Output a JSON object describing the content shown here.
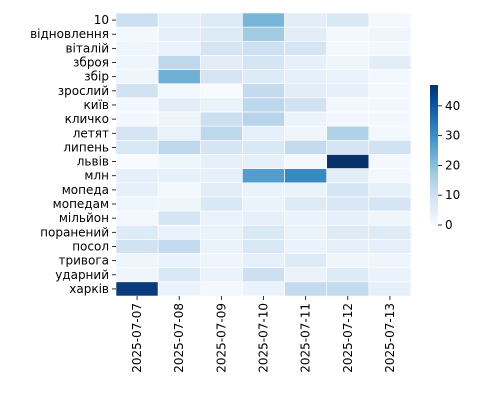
{
  "chart_data": {
    "type": "heatmap",
    "title": "",
    "xlabel": "",
    "ylabel": "",
    "x": [
      "2025-07-07",
      "2025-07-08",
      "2025-07-09",
      "2025-07-10",
      "2025-07-11",
      "2025-07-12",
      "2025-07-13"
    ],
    "y": [
      "10",
      "відновлення",
      "віталій",
      "зброя",
      "збір",
      "зрослий",
      "київ",
      "кличко",
      "летят",
      "липень",
      "львів",
      "млн",
      "мопеда",
      "мопедам",
      "мільйон",
      "поранений",
      "посол",
      "тривога",
      "ударний",
      "харків"
    ],
    "values": [
      [
        10,
        4,
        6,
        22,
        5,
        7,
        1
      ],
      [
        1,
        4,
        6,
        17,
        5,
        1,
        2
      ],
      [
        2,
        3,
        8,
        10,
        8,
        1,
        1
      ],
      [
        2,
        13,
        5,
        8,
        4,
        2,
        5
      ],
      [
        2,
        23,
        8,
        6,
        4,
        3,
        1
      ],
      [
        9,
        1,
        0,
        12,
        5,
        4,
        1
      ],
      [
        1,
        5,
        3,
        13,
        9,
        1,
        1
      ],
      [
        1,
        2,
        10,
        14,
        3,
        1,
        1
      ],
      [
        8,
        3,
        13,
        4,
        2,
        15,
        1
      ],
      [
        7,
        13,
        8,
        7,
        12,
        8,
        9
      ],
      [
        0,
        2,
        4,
        4,
        1,
        47,
        1
      ],
      [
        4,
        4,
        4,
        27,
        31,
        5,
        1
      ],
      [
        4,
        1,
        5,
        3,
        3,
        8,
        4
      ],
      [
        2,
        2,
        7,
        3,
        6,
        7,
        8
      ],
      [
        1,
        8,
        3,
        4,
        3,
        4,
        2
      ],
      [
        6,
        3,
        3,
        7,
        3,
        6,
        6
      ],
      [
        9,
        12,
        3,
        7,
        3,
        4,
        4
      ],
      [
        2,
        3,
        2,
        4,
        6,
        2,
        2
      ],
      [
        2,
        7,
        3,
        10,
        3,
        6,
        3
      ],
      [
        45,
        3,
        1,
        3,
        12,
        12,
        4
      ]
    ],
    "colorbar": {
      "min": 0,
      "max": 47,
      "ticks": [
        0,
        10,
        20,
        30,
        40
      ],
      "cmap": "Blues"
    },
    "grid": true,
    "legend": "right"
  }
}
